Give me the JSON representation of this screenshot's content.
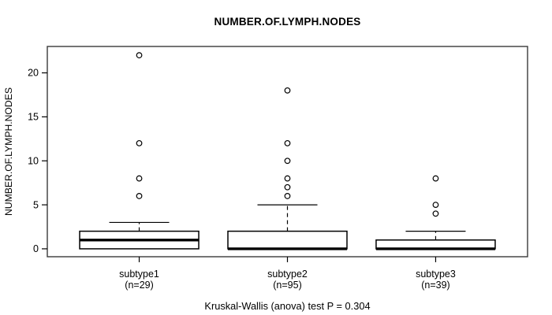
{
  "caption": "Kruskal-Wallis (anova) test P = 0.304",
  "colors": {
    "foreground": "#000000",
    "frame": "#3a3a3a",
    "box_fill": "#ffffff",
    "background": "#ffffff"
  },
  "chart_data": {
    "type": "boxplot",
    "title": "NUMBER.OF.LYMPH.NODES",
    "ylabel": "NUMBER.OF.LYMPH.NODES",
    "xlabel": "",
    "ylim": [
      -0.9,
      23
    ],
    "yticks": [
      0,
      5,
      10,
      15,
      20
    ],
    "grid": false,
    "categories": [
      "subtype1",
      "subtype2",
      "subtype3"
    ],
    "groups": [
      {
        "label": "subtype1",
        "sublabel": "(n=29)",
        "q1": 0,
        "median": 1,
        "q3": 2,
        "whisker_low": 0,
        "whisker_high": 3,
        "outliers": [
          6,
          8,
          12,
          22
        ]
      },
      {
        "label": "subtype2",
        "sublabel": "(n=95)",
        "q1": 0,
        "median": 0,
        "q3": 2,
        "whisker_low": 0,
        "whisker_high": 5,
        "outliers": [
          6,
          7,
          8,
          10,
          12,
          18
        ]
      },
      {
        "label": "subtype3",
        "sublabel": "(n=39)",
        "q1": 0,
        "median": 0,
        "q3": 1,
        "whisker_low": 0,
        "whisker_high": 2,
        "outliers": [
          4,
          5,
          8
        ]
      }
    ]
  }
}
